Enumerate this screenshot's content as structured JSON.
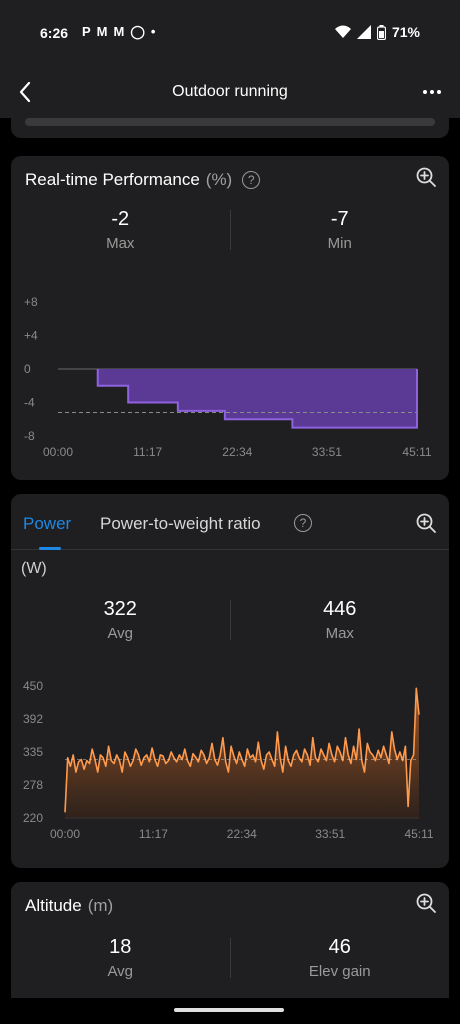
{
  "status_bar": {
    "time": "6:26",
    "notif_icons": [
      "paypal-icon",
      "gmail-icon",
      "gmail-icon",
      "shield-icon",
      "dot-icon"
    ],
    "battery": "71%"
  },
  "header": {
    "title": "Outdoor running"
  },
  "performance": {
    "title": "Real-time Performance",
    "unit": "(%)",
    "stats": [
      {
        "value": "-2",
        "label": "Max"
      },
      {
        "value": "-7",
        "label": "Min"
      }
    ],
    "chart_data": {
      "type": "area",
      "y_ticks": [
        "+8",
        "+4",
        "0",
        "-4",
        "-8"
      ],
      "x_ticks": [
        "00:00",
        "11:17",
        "22:34",
        "33:51",
        "45:11"
      ],
      "ylim": [
        -8,
        8
      ],
      "step_x": [
        "05:00",
        "08:50",
        "15:05",
        "21:00",
        "29:30",
        "40:00",
        "45:11"
      ],
      "step_y": [
        -2,
        -4,
        -5,
        -6,
        -7,
        -7
      ],
      "average_line": -5.2,
      "fill_color": "#5b3a96",
      "line_color": "#8f62e0"
    }
  },
  "power": {
    "tabs": [
      "Power",
      "Power-to-weight ratio"
    ],
    "unit": "(W)",
    "stats": [
      {
        "value": "322",
        "label": "Avg"
      },
      {
        "value": "446",
        "label": "Max"
      }
    ],
    "chart_data": {
      "type": "area",
      "y_ticks": [
        "450",
        "392",
        "335",
        "278",
        "220"
      ],
      "x_ticks": [
        "00:00",
        "11:17",
        "22:34",
        "33:51",
        "45:11"
      ],
      "ylim": [
        220,
        450
      ],
      "xlim_minutes": [
        0,
        45.18
      ],
      "average_line": 322,
      "line_color": "#ff9a4d",
      "values": [
        230,
        325,
        310,
        330,
        300,
        318,
        322,
        305,
        320,
        315,
        340,
        322,
        300,
        330,
        325,
        310,
        345,
        320,
        315,
        330,
        320,
        300,
        335,
        325,
        310,
        320,
        340,
        330,
        312,
        325,
        330,
        318,
        342,
        322,
        310,
        330,
        328,
        315,
        320,
        335,
        325,
        318,
        330,
        322,
        340,
        320,
        310,
        332,
        326,
        318,
        338,
        330,
        315,
        325,
        350,
        322,
        312,
        330,
        360,
        318,
        300,
        345,
        328,
        315,
        335,
        322,
        310,
        340,
        325,
        330,
        318,
        352,
        320,
        305,
        330,
        335,
        322,
        310,
        370,
        325,
        300,
        345,
        320,
        310,
        330,
        338,
        325,
        318,
        340,
        330,
        312,
        360,
        325,
        318,
        340,
        330,
        320,
        350,
        330,
        318,
        345,
        335,
        320,
        360,
        330,
        315,
        345,
        322,
        375,
        320,
        300,
        350,
        335,
        330,
        320,
        338,
        325,
        345,
        330,
        315,
        370,
        340,
        322,
        335,
        320,
        345,
        240,
        320,
        330,
        446,
        400
      ]
    }
  },
  "altitude": {
    "title": "Altitude",
    "unit": "(m)",
    "stats": [
      {
        "value": "18",
        "label": "Avg"
      },
      {
        "value": "46",
        "label": "Elev gain"
      }
    ]
  }
}
